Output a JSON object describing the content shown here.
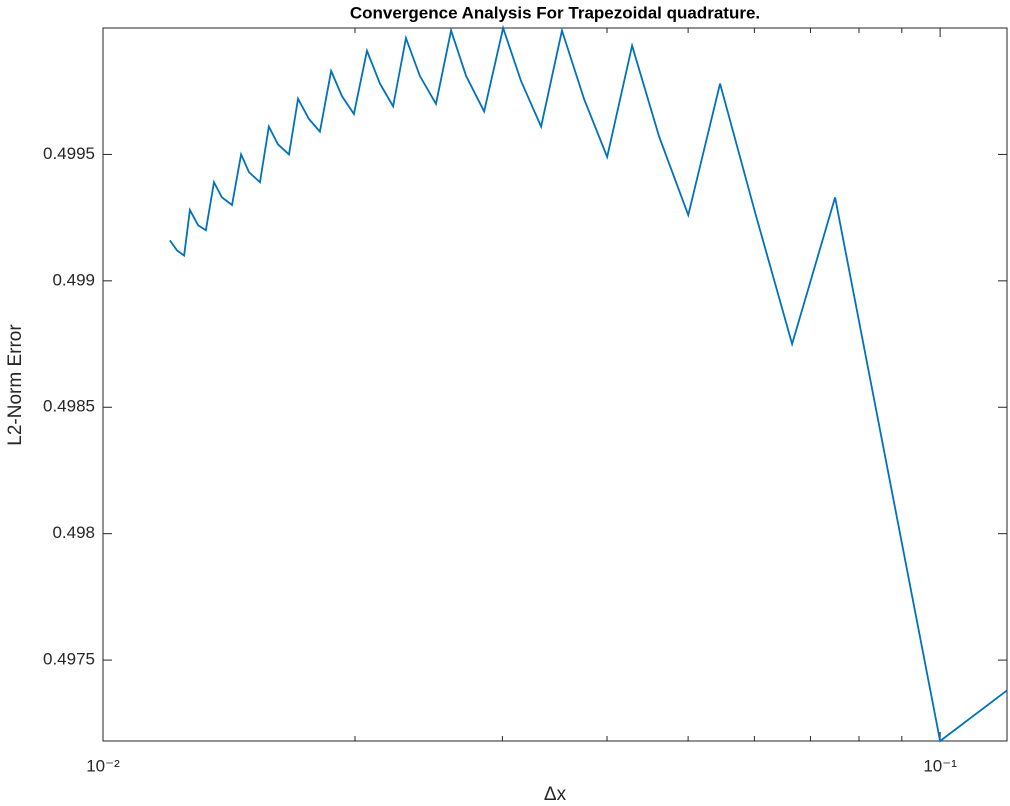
{
  "chart_data": {
    "type": "line",
    "title": "Convergence Analysis For Trapezoidal quadrature.",
    "xlabel": "Δx",
    "ylabel": "L2-Norm Error",
    "xscale": "log",
    "grid": false,
    "xlim": [
      0.01,
      0.1202
    ],
    "ylim": [
      0.49718,
      0.5
    ],
    "xticks": [
      {
        "value": 0.01,
        "label": "10⁻²"
      },
      {
        "value": 0.1,
        "label": "10⁻¹"
      }
    ],
    "xminorticks": [
      0.02,
      0.03,
      0.04,
      0.05,
      0.06,
      0.07,
      0.08,
      0.09
    ],
    "yticks": [
      0.4975,
      0.498,
      0.4985,
      0.499,
      0.4995
    ],
    "series": [
      {
        "color": "#0072bd",
        "x": [
          0.01202,
          0.01226,
          0.0125,
          0.0127,
          0.01299,
          0.01327,
          0.01357,
          0.01387,
          0.01426,
          0.01462,
          0.01494,
          0.0154,
          0.01578,
          0.01618,
          0.01668,
          0.0171,
          0.01762,
          0.01816,
          0.01873,
          0.0193,
          0.01994,
          0.02067,
          0.02142,
          0.02221,
          0.02301,
          0.02391,
          0.02499,
          0.02605,
          0.02715,
          0.02853,
          0.03006,
          0.03158,
          0.03337,
          0.03534,
          0.03755,
          0.04002,
          0.04286,
          0.04617,
          0.05002,
          0.05459,
          0.06012,
          0.06656,
          0.07491,
          0.1,
          0.1202
        ],
        "values": [
          0.49916,
          0.49912,
          0.4991,
          0.49928,
          0.49922,
          0.4992,
          0.49939,
          0.49933,
          0.4993,
          0.4995,
          0.49943,
          0.49939,
          0.49961,
          0.49954,
          0.4995,
          0.49972,
          0.49964,
          0.49959,
          0.49983,
          0.49973,
          0.49966,
          0.49991,
          0.49978,
          0.49969,
          0.49996,
          0.49981,
          0.4997,
          0.49999,
          0.49981,
          0.49967,
          0.5,
          0.49979,
          0.49961,
          0.49999,
          0.49972,
          0.49949,
          0.49993,
          0.49957,
          0.49926,
          0.49978,
          0.49927,
          0.49875,
          0.49933,
          0.49718,
          0.49738
        ]
      }
    ]
  }
}
